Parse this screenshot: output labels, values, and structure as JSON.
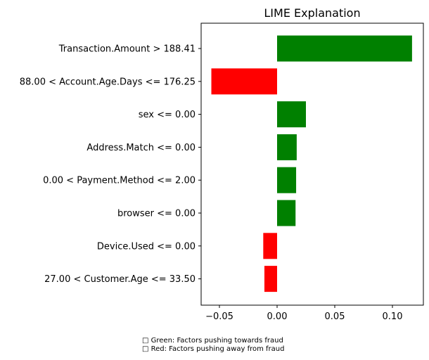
{
  "chart_data": {
    "type": "bar",
    "orientation": "horizontal",
    "title": "LIME Explanation",
    "xlabel": "",
    "ylabel": "",
    "xlim": [
      -0.066,
      0.125
    ],
    "xticks": [
      "−0.05",
      "0.00",
      "0.05",
      "0.10"
    ],
    "xtick_values": [
      -0.05,
      0.0,
      0.05,
      0.1
    ],
    "grid": false,
    "categories": [
      "Transaction.Amount > 188.41",
      "88.00 < Account.Age.Days <= 176.25",
      "sex <= 0.00",
      "Address.Match <= 0.00",
      "0.00 < Payment.Method <= 2.00",
      "browser <= 0.00",
      "Device.Used <= 0.00",
      "27.00 < Customer.Age <= 33.50"
    ],
    "values": [
      0.117,
      -0.057,
      0.025,
      0.017,
      0.0165,
      0.016,
      -0.012,
      -0.011
    ],
    "colors": {
      "positive": "#008000",
      "negative": "#ff0000"
    }
  },
  "caption": {
    "line1": "□ Green: Factors pushing towards fraud",
    "line2": "□ Red: Factors pushing away from fraud"
  }
}
